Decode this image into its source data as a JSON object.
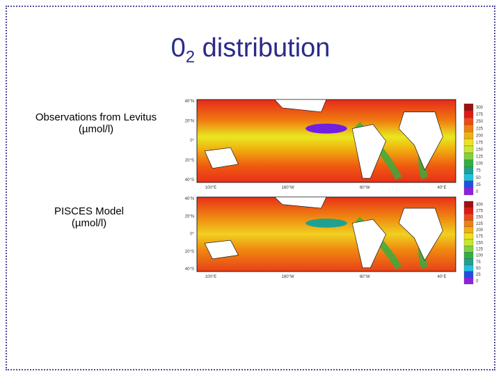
{
  "title": {
    "base": "0",
    "subscript": "2",
    "text": "distribution"
  },
  "panels": [
    {
      "label": "Observations from Levitus",
      "unit": "(µmol/l)",
      "lat_labels": [
        "40°N",
        "20°N",
        "0°",
        "20°S",
        "40°S"
      ],
      "lon_labels": [
        "100°E",
        "160°W",
        "60°W",
        "40°E"
      ],
      "colorbar": [
        "300",
        "275",
        "250",
        "225",
        "200",
        "175",
        "150",
        "125",
        "100",
        "75",
        "50",
        "25",
        "0"
      ]
    },
    {
      "label": "PISCES Model",
      "unit": "(µmol/l)",
      "lat_labels": [
        "40°N",
        "20°N",
        "0°",
        "20°S",
        "40°S"
      ],
      "lon_labels": [
        "100°E",
        "160°W",
        "60°W",
        "40°E"
      ],
      "colorbar": [
        "300",
        "275",
        "250",
        "225",
        "200",
        "175",
        "150",
        "125",
        "100",
        "75",
        "50",
        "25",
        "0"
      ]
    }
  ]
}
